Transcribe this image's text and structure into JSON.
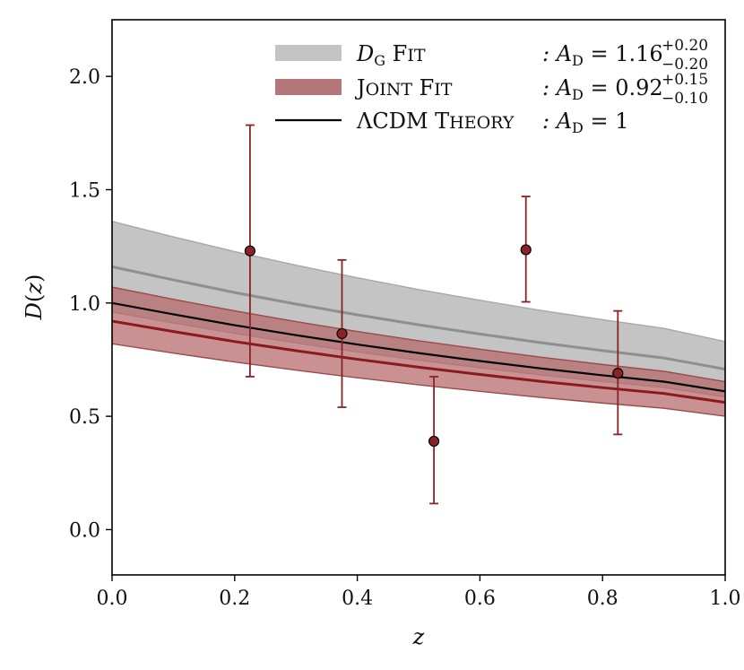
{
  "chart_data": {
    "type": "line",
    "title": "",
    "xlabel": "z",
    "ylabel": "D(z)",
    "xlim": [
      0.0,
      1.0
    ],
    "ylim": [
      -0.2,
      2.25
    ],
    "xticks": [
      "0.0",
      "0.2",
      "0.4",
      "0.6",
      "0.8",
      "1.0"
    ],
    "yticks": [
      "0.0",
      "0.5",
      "1.0",
      "1.5",
      "2.0"
    ],
    "xtick_values": [
      0.0,
      0.2,
      0.4,
      0.6,
      0.8,
      1.0
    ],
    "ytick_values": [
      0.0,
      0.5,
      1.0,
      1.5,
      2.0
    ],
    "legend_position": "top-right",
    "growth_curve": {
      "x": [
        0.0,
        0.1,
        0.2,
        0.3,
        0.4,
        0.5,
        0.6,
        0.7,
        0.8,
        0.9,
        1.0
      ],
      "base": [
        1.0,
        0.95,
        0.902,
        0.858,
        0.817,
        0.779,
        0.744,
        0.711,
        0.681,
        0.653,
        0.61
      ]
    },
    "series": [
      {
        "name": "D_G Fit",
        "kind": "band_with_line",
        "amplitude": 1.16,
        "lower": 0.96,
        "upper": 1.36,
        "band_color": "#c4c4c4",
        "band_edge_color": "#a8a8a8",
        "line_color": "#8f8f8f"
      },
      {
        "name": "Joint Fit",
        "kind": "band_with_line",
        "amplitude": 0.92,
        "lower": 0.82,
        "upper": 1.07,
        "band_color": "#b5676a",
        "band_edge_color": "#9a4a4d",
        "line_color": "#8b1a1c"
      },
      {
        "name": "ΛCDM Theory",
        "kind": "line",
        "amplitude": 1.0,
        "line_color": "#000000"
      }
    ],
    "points": {
      "name": "measurements",
      "color": "#8b2326",
      "x": [
        0.225,
        0.375,
        0.525,
        0.675,
        0.825
      ],
      "y": [
        1.23,
        0.865,
        0.39,
        1.235,
        0.69
      ],
      "yerr_low": [
        0.555,
        0.325,
        0.275,
        0.23,
        0.27
      ],
      "yerr_high": [
        0.555,
        0.325,
        0.285,
        0.235,
        0.275
      ]
    },
    "legend": [
      {
        "swatch": "band",
        "color": "#c4c4c4",
        "label_main": "D",
        "label_sub": "G",
        "label_rest": " F",
        "label_sc": "IT",
        "value_prefix": ": A",
        "value_sub": "D",
        "value_main": " = 1.16",
        "value_sup": "+0.20",
        "value_inf": "−0.20"
      },
      {
        "swatch": "band",
        "color": "#b5767a",
        "label_main": "J",
        "label_sc": "OINT",
        "label_main2": " F",
        "label_sc2": "IT",
        "value_prefix": ": A",
        "value_sub": "D",
        "value_main": " = 0.92",
        "value_sup": "+0.15",
        "value_inf": "−0.10"
      },
      {
        "swatch": "line",
        "color": "#000000",
        "label_main": "ΛCDM T",
        "label_sc": "HEORY",
        "value_prefix": ": A",
        "value_sub": "D",
        "value_main": " = 1"
      }
    ]
  }
}
